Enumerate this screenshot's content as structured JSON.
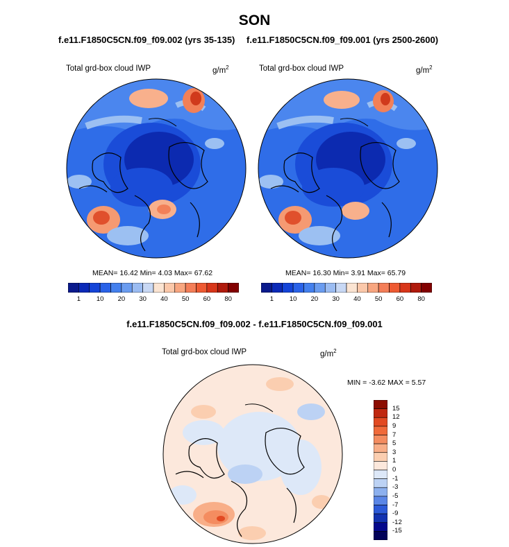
{
  "title": "SON",
  "subtitles": {
    "left": "f.e11.F1850C5CN.f09_f09.002 (yrs 35-135)",
    "right": "f.e11.F1850C5CN.f09_f09.001 (yrs 2500-2600)"
  },
  "panels": [
    {
      "label": "Total grd-box cloud IWP",
      "unit_base": "g/m",
      "unit_exp": "2",
      "stats": "MEAN=  16.42  Min=   4.03  Max=  67.62"
    },
    {
      "label": "Total grd-box cloud IWP",
      "unit_base": "g/m",
      "unit_exp": "2",
      "stats": "MEAN=  16.30  Min=   3.91  Max=  65.79"
    }
  ],
  "colorbar_top": {
    "ticks": [
      "1",
      "10",
      "20",
      "30",
      "40",
      "50",
      "60",
      "80"
    ],
    "colors": [
      "#0a1a8c",
      "#0b2ab8",
      "#1444d8",
      "#2a62e8",
      "#4480ee",
      "#6a9cf0",
      "#9bbcf2",
      "#c8d8f4",
      "#fbe4d2",
      "#fbc8aa",
      "#f8a680",
      "#f47e58",
      "#ee5a32",
      "#d8361a",
      "#b01a0c",
      "#820000"
    ]
  },
  "diff": {
    "title": "f.e11.F1850C5CN.f09_f09.002 - f.e11.F1850C5CN.f09_f09.001",
    "label": "Total grd-box cloud IWP",
    "unit_base": "g/m",
    "unit_exp": "2",
    "minmax": "MIN =  -3.62 MAX =   5.57",
    "levels": [
      "15",
      "12",
      "9",
      "7",
      "5",
      "3",
      "1",
      "0",
      "-1",
      "-3",
      "-5",
      "-7",
      "-9",
      "-12",
      "-15"
    ],
    "colors": [
      "#8c0c00",
      "#c02810",
      "#e24a22",
      "#f06a3a",
      "#f48c60",
      "#f8ae88",
      "#fbceb0",
      "#fce8dc",
      "#dde8f8",
      "#bcd2f4",
      "#8cb0ee",
      "#5a86e6",
      "#2c5ad8",
      "#1232b0",
      "#04088c",
      "#02025a"
    ]
  }
}
